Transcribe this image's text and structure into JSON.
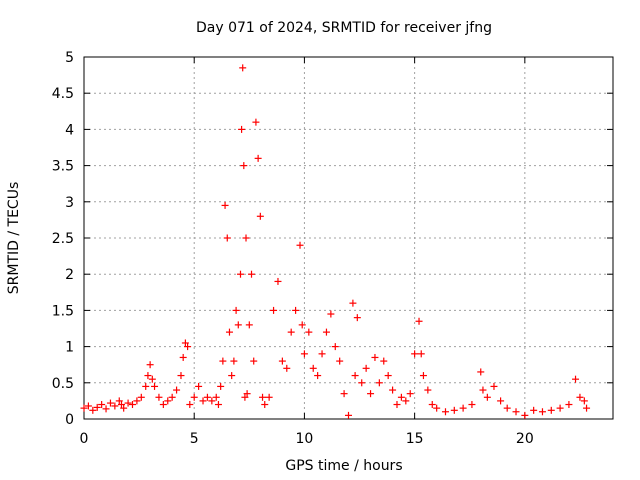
{
  "chart_data": {
    "type": "scatter",
    "title": "Day 071 of 2024, SRMTID for receiver jfng",
    "xlabel": "GPS time / hours",
    "ylabel": "SRMTID / TECUs",
    "xlim": [
      0,
      24
    ],
    "ylim": [
      0,
      5
    ],
    "grid": true,
    "x_ticks": [
      0,
      5,
      10,
      15,
      20
    ],
    "x_tick_labels": [
      "0",
      "5",
      "10",
      "15",
      "20"
    ],
    "y_ticks": [
      0,
      0.5,
      1,
      1.5,
      2,
      2.5,
      3,
      3.5,
      4,
      4.5,
      5
    ],
    "y_tick_labels": [
      "0",
      "0.5",
      "1",
      "1.5",
      "2",
      "2.5",
      "3",
      "3.5",
      "4",
      "4.5",
      "5"
    ],
    "marker": "+",
    "color": "#ff0000",
    "series": [
      {
        "name": "SRMTID",
        "x": [
          0.0,
          0.2,
          0.4,
          0.6,
          0.8,
          1.0,
          1.2,
          1.4,
          1.6,
          1.7,
          1.8,
          2.0,
          2.2,
          2.4,
          2.6,
          2.8,
          2.9,
          3.0,
          3.1,
          3.2,
          3.4,
          3.6,
          3.8,
          4.0,
          4.2,
          4.4,
          4.5,
          4.6,
          4.7,
          4.8,
          5.0,
          5.2,
          5.4,
          5.6,
          5.8,
          6.0,
          6.1,
          6.2,
          6.3,
          6.4,
          6.5,
          6.6,
          6.7,
          6.8,
          6.9,
          7.0,
          7.1,
          7.15,
          7.2,
          7.25,
          7.3,
          7.35,
          7.4,
          7.5,
          7.6,
          7.7,
          7.8,
          7.9,
          8.0,
          8.1,
          8.2,
          8.4,
          8.6,
          8.8,
          9.0,
          9.2,
          9.4,
          9.6,
          9.8,
          9.9,
          10.0,
          10.2,
          10.4,
          10.6,
          10.8,
          11.0,
          11.2,
          11.4,
          11.6,
          11.8,
          12.0,
          12.2,
          12.3,
          12.4,
          12.6,
          12.8,
          13.0,
          13.2,
          13.4,
          13.6,
          13.8,
          14.0,
          14.2,
          14.4,
          14.6,
          14.8,
          15.0,
          15.2,
          15.3,
          15.4,
          15.6,
          15.8,
          16.0,
          16.4,
          16.8,
          17.2,
          17.6,
          18.0,
          18.1,
          18.3,
          18.6,
          18.9,
          19.2,
          19.6,
          20.0,
          20.4,
          20.8,
          21.2,
          21.6,
          22.0,
          22.3,
          22.5,
          22.7,
          22.8
        ],
        "y": [
          0.15,
          0.18,
          0.12,
          0.16,
          0.2,
          0.14,
          0.22,
          0.18,
          0.25,
          0.2,
          0.15,
          0.22,
          0.2,
          0.25,
          0.3,
          0.45,
          0.6,
          0.75,
          0.55,
          0.45,
          0.3,
          0.2,
          0.25,
          0.3,
          0.4,
          0.6,
          0.85,
          1.05,
          1.0,
          0.2,
          0.3,
          0.45,
          0.25,
          0.3,
          0.25,
          0.3,
          0.2,
          0.45,
          0.8,
          2.95,
          2.5,
          1.2,
          0.6,
          0.8,
          1.5,
          1.3,
          2.0,
          4.0,
          4.85,
          3.5,
          0.3,
          2.5,
          0.35,
          1.3,
          2.0,
          0.8,
          4.1,
          3.6,
          2.8,
          0.3,
          0.2,
          0.3,
          1.5,
          1.9,
          0.8,
          0.7,
          1.2,
          1.5,
          2.4,
          1.3,
          0.9,
          1.2,
          0.7,
          0.6,
          0.9,
          1.2,
          1.45,
          1.0,
          0.8,
          0.35,
          0.05,
          1.6,
          0.6,
          1.4,
          0.5,
          0.7,
          0.35,
          0.85,
          0.5,
          0.8,
          0.6,
          0.4,
          0.2,
          0.3,
          0.25,
          0.35,
          0.9,
          1.35,
          0.9,
          0.6,
          0.4,
          0.2,
          0.15,
          0.1,
          0.12,
          0.15,
          0.2,
          0.65,
          0.4,
          0.3,
          0.45,
          0.25,
          0.15,
          0.1,
          0.05,
          0.12,
          0.1,
          0.12,
          0.15,
          0.2,
          0.55,
          0.3,
          0.25,
          0.15
        ]
      }
    ]
  }
}
